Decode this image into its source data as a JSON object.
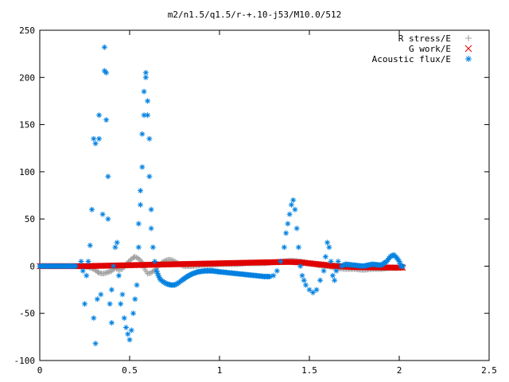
{
  "chart_data": {
    "type": "scatter",
    "title": "m2/n1.5/q1.5/r-+.10-j53/M10.0/512",
    "xlim": [
      0,
      2.5
    ],
    "ylim": [
      -100,
      250
    ],
    "x_ticks": [
      "0",
      "0.5",
      "1",
      "1.5",
      "2",
      "2.5"
    ],
    "y_ticks": [
      "250",
      "200",
      "150",
      "100",
      "50",
      "0",
      "-50",
      "-100"
    ],
    "grid": false,
    "legend_position": "top-right",
    "series": [
      {
        "name": "R stress/E",
        "marker": "plus",
        "color": "#a0a0a0",
        "points": [
          [
            0.0,
            0
          ],
          [
            0.05,
            0
          ],
          [
            0.1,
            0
          ],
          [
            0.15,
            0
          ],
          [
            0.2,
            0
          ],
          [
            0.24,
            0
          ],
          [
            0.27,
            -1
          ],
          [
            0.3,
            -3
          ],
          [
            0.32,
            -6
          ],
          [
            0.33,
            -7
          ],
          [
            0.35,
            -8
          ],
          [
            0.37,
            -7
          ],
          [
            0.4,
            -5
          ],
          [
            0.42,
            -2
          ],
          [
            0.44,
            -4
          ],
          [
            0.46,
            -3
          ],
          [
            0.48,
            2
          ],
          [
            0.5,
            6
          ],
          [
            0.52,
            9
          ],
          [
            0.53,
            10
          ],
          [
            0.55,
            8
          ],
          [
            0.57,
            4
          ],
          [
            0.58,
            -2
          ],
          [
            0.6,
            -8
          ],
          [
            0.62,
            -7
          ],
          [
            0.64,
            -4
          ],
          [
            0.66,
            0
          ],
          [
            0.68,
            4
          ],
          [
            0.7,
            6
          ],
          [
            0.72,
            7
          ],
          [
            0.74,
            6
          ],
          [
            0.76,
            4
          ],
          [
            0.78,
            2
          ],
          [
            0.8,
            0
          ],
          [
            0.85,
            0
          ],
          [
            0.9,
            1
          ],
          [
            0.95,
            1
          ],
          [
            1.0,
            2
          ],
          [
            1.05,
            2
          ],
          [
            1.1,
            2
          ],
          [
            1.15,
            3
          ],
          [
            1.2,
            3
          ],
          [
            1.25,
            3
          ],
          [
            1.3,
            4
          ],
          [
            1.35,
            5
          ],
          [
            1.4,
            6
          ],
          [
            1.45,
            5
          ],
          [
            1.5,
            3
          ],
          [
            1.55,
            1
          ],
          [
            1.6,
            0
          ],
          [
            1.65,
            -2
          ],
          [
            1.7,
            -3
          ],
          [
            1.75,
            -3
          ],
          [
            1.8,
            -4
          ],
          [
            1.85,
            -3
          ],
          [
            1.9,
            -3
          ],
          [
            1.95,
            -2
          ],
          [
            2.0,
            -2
          ],
          [
            2.02,
            -2
          ]
        ]
      },
      {
        "name": "G work/E",
        "marker": "cross",
        "color": "#e00000",
        "points": [
          [
            0.0,
            0
          ],
          [
            0.1,
            0
          ],
          [
            0.2,
            0
          ],
          [
            0.25,
            0
          ],
          [
            0.3,
            0.2
          ],
          [
            0.35,
            0.4
          ],
          [
            0.4,
            0.6
          ],
          [
            0.45,
            0.8
          ],
          [
            0.5,
            1.0
          ],
          [
            0.55,
            1.2
          ],
          [
            0.6,
            1.4
          ],
          [
            0.65,
            1.6
          ],
          [
            0.7,
            1.8
          ],
          [
            0.75,
            2.0
          ],
          [
            0.8,
            2.2
          ],
          [
            0.85,
            2.4
          ],
          [
            0.9,
            2.6
          ],
          [
            0.95,
            2.8
          ],
          [
            1.0,
            3.0
          ],
          [
            1.05,
            3.2
          ],
          [
            1.1,
            3.4
          ],
          [
            1.15,
            3.6
          ],
          [
            1.2,
            3.8
          ],
          [
            1.25,
            4.0
          ],
          [
            1.3,
            4.2
          ],
          [
            1.35,
            4.4
          ],
          [
            1.4,
            4.5
          ],
          [
            1.45,
            4.0
          ],
          [
            1.5,
            3.0
          ],
          [
            1.55,
            2.0
          ],
          [
            1.6,
            1.0
          ],
          [
            1.65,
            0
          ],
          [
            1.7,
            -0.5
          ],
          [
            1.75,
            -1
          ],
          [
            1.8,
            -1.2
          ],
          [
            1.85,
            -1.3
          ],
          [
            1.9,
            -1.4
          ],
          [
            1.95,
            -1.5
          ],
          [
            2.0,
            -1.6
          ],
          [
            2.02,
            -1.6
          ]
        ]
      },
      {
        "name": "Acoustic flux/E",
        "marker": "star",
        "color": "#0080e0",
        "points": [
          [
            0.0,
            0
          ],
          [
            0.05,
            0
          ],
          [
            0.1,
            0
          ],
          [
            0.15,
            0
          ],
          [
            0.2,
            0
          ],
          [
            0.23,
            5
          ],
          [
            0.24,
            -5
          ],
          [
            0.25,
            -40
          ],
          [
            0.26,
            -10
          ],
          [
            0.27,
            5
          ],
          [
            0.28,
            22
          ],
          [
            0.29,
            60
          ],
          [
            0.3,
            135
          ],
          [
            0.3,
            -55
          ],
          [
            0.31,
            -82
          ],
          [
            0.31,
            130
          ],
          [
            0.32,
            -35
          ],
          [
            0.33,
            160
          ],
          [
            0.33,
            135
          ],
          [
            0.34,
            -30
          ],
          [
            0.35,
            55
          ],
          [
            0.36,
            207
          ],
          [
            0.36,
            232
          ],
          [
            0.37,
            205
          ],
          [
            0.37,
            155
          ],
          [
            0.38,
            95
          ],
          [
            0.38,
            50
          ],
          [
            0.39,
            -40
          ],
          [
            0.4,
            -60
          ],
          [
            0.4,
            -25
          ],
          [
            0.41,
            0
          ],
          [
            0.42,
            20
          ],
          [
            0.43,
            25
          ],
          [
            0.44,
            -10
          ],
          [
            0.45,
            -40
          ],
          [
            0.46,
            -30
          ],
          [
            0.47,
            -55
          ],
          [
            0.48,
            -65
          ],
          [
            0.49,
            -72
          ],
          [
            0.5,
            -78
          ],
          [
            0.51,
            -68
          ],
          [
            0.52,
            -50
          ],
          [
            0.53,
            -35
          ],
          [
            0.54,
            -20
          ],
          [
            0.55,
            20
          ],
          [
            0.55,
            45
          ],
          [
            0.56,
            65
          ],
          [
            0.56,
            80
          ],
          [
            0.57,
            105
          ],
          [
            0.57,
            140
          ],
          [
            0.58,
            160
          ],
          [
            0.58,
            185
          ],
          [
            0.59,
            205
          ],
          [
            0.59,
            200
          ],
          [
            0.6,
            175
          ],
          [
            0.6,
            160
          ],
          [
            0.61,
            135
          ],
          [
            0.61,
            95
          ],
          [
            0.62,
            60
          ],
          [
            0.62,
            40
          ],
          [
            0.63,
            20
          ],
          [
            0.64,
            5
          ],
          [
            0.65,
            -5
          ],
          [
            0.66,
            -10
          ],
          [
            0.67,
            -14
          ],
          [
            0.69,
            -17
          ],
          [
            0.71,
            -19
          ],
          [
            0.73,
            -20
          ],
          [
            0.75,
            -20
          ],
          [
            0.77,
            -18
          ],
          [
            0.79,
            -15
          ],
          [
            0.82,
            -11
          ],
          [
            0.85,
            -8
          ],
          [
            0.88,
            -6
          ],
          [
            0.92,
            -5
          ],
          [
            0.96,
            -5
          ],
          [
            1.0,
            -6
          ],
          [
            1.05,
            -7
          ],
          [
            1.1,
            -8
          ],
          [
            1.15,
            -9
          ],
          [
            1.2,
            -10
          ],
          [
            1.25,
            -11
          ],
          [
            1.28,
            -11
          ],
          [
            1.3,
            -10
          ],
          [
            1.32,
            -5
          ],
          [
            1.34,
            5
          ],
          [
            1.36,
            20
          ],
          [
            1.37,
            35
          ],
          [
            1.38,
            45
          ],
          [
            1.39,
            55
          ],
          [
            1.4,
            65
          ],
          [
            1.41,
            70
          ],
          [
            1.42,
            60
          ],
          [
            1.43,
            40
          ],
          [
            1.44,
            20
          ],
          [
            1.45,
            0
          ],
          [
            1.46,
            -10
          ],
          [
            1.47,
            -15
          ],
          [
            1.48,
            -20
          ],
          [
            1.5,
            -25
          ],
          [
            1.52,
            -28
          ],
          [
            1.54,
            -25
          ],
          [
            1.56,
            -15
          ],
          [
            1.58,
            -5
          ],
          [
            1.59,
            10
          ],
          [
            1.6,
            25
          ],
          [
            1.61,
            20
          ],
          [
            1.62,
            5
          ],
          [
            1.63,
            -10
          ],
          [
            1.64,
            -15
          ],
          [
            1.65,
            -5
          ],
          [
            1.66,
            5
          ],
          [
            1.68,
            0
          ],
          [
            1.7,
            2
          ],
          [
            1.75,
            1
          ],
          [
            1.8,
            0
          ],
          [
            1.85,
            2
          ],
          [
            1.9,
            1
          ],
          [
            1.93,
            5
          ],
          [
            1.95,
            10
          ],
          [
            1.97,
            12
          ],
          [
            1.99,
            8
          ],
          [
            2.0,
            5
          ],
          [
            2.01,
            0
          ],
          [
            2.02,
            0
          ]
        ]
      }
    ]
  }
}
